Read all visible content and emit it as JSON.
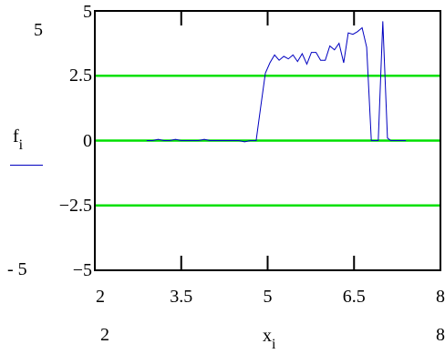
{
  "chart_data": {
    "type": "line",
    "xlabel": "x",
    "xlabel_sub": "i",
    "ylabel": "f",
    "ylabel_sub": "i",
    "xlim": [
      2,
      8
    ],
    "ylim": [
      -5,
      5
    ],
    "xlim_labels": {
      "left": "2",
      "right": "8"
    },
    "ylim_labels": {
      "top": "5",
      "bottom": "- 5"
    },
    "x_ticks": [
      {
        "value": 2,
        "label": "2"
      },
      {
        "value": 3.5,
        "label": "3.5"
      },
      {
        "value": 5,
        "label": "5"
      },
      {
        "value": 6.5,
        "label": "6.5"
      },
      {
        "value": 8,
        "label": "8"
      }
    ],
    "y_ticks": [
      {
        "value": 5,
        "label": "5"
      },
      {
        "value": 2.5,
        "label": "2.5"
      },
      {
        "value": 0,
        "label": "0"
      },
      {
        "value": -2.5,
        "label": "−2.5"
      },
      {
        "value": -5,
        "label": "−5"
      }
    ],
    "reference_lines": [
      2.5,
      0,
      -2.5
    ],
    "series": [
      {
        "color": "#0000c0",
        "x": [
          2.9,
          3.0,
          3.1,
          3.2,
          3.3,
          3.4,
          3.5,
          3.6,
          3.7,
          3.8,
          3.9,
          4.0,
          4.1,
          4.2,
          4.3,
          4.4,
          4.5,
          4.6,
          4.7,
          4.8,
          4.88,
          4.96,
          5.04,
          5.12,
          5.2,
          5.28,
          5.36,
          5.44,
          5.52,
          5.6,
          5.68,
          5.76,
          5.84,
          5.92,
          6.0,
          6.08,
          6.16,
          6.24,
          6.32,
          6.4,
          6.48,
          6.56,
          6.64,
          6.72,
          6.8,
          6.86,
          6.92,
          7.0,
          7.08,
          7.14,
          7.22,
          7.3,
          7.4
        ],
        "y": [
          0.0,
          0.0,
          0.05,
          0.0,
          0.0,
          0.05,
          0.0,
          0.0,
          0.0,
          0.0,
          0.05,
          0.0,
          0.0,
          0.0,
          0.0,
          0.0,
          0.0,
          -0.05,
          0.0,
          0.0,
          1.3,
          2.6,
          3.0,
          3.3,
          3.1,
          3.25,
          3.15,
          3.3,
          3.05,
          3.35,
          2.95,
          3.4,
          3.4,
          3.1,
          3.1,
          3.65,
          3.5,
          3.75,
          3.0,
          4.15,
          4.1,
          4.2,
          4.35,
          3.6,
          0.0,
          0.0,
          0.0,
          4.6,
          0.1,
          0.0,
          0.0,
          0.0,
          0.0
        ]
      }
    ],
    "grid": false,
    "colors": {
      "axis": "#000000",
      "reference": "#00e000",
      "series": "#0000c0"
    }
  }
}
